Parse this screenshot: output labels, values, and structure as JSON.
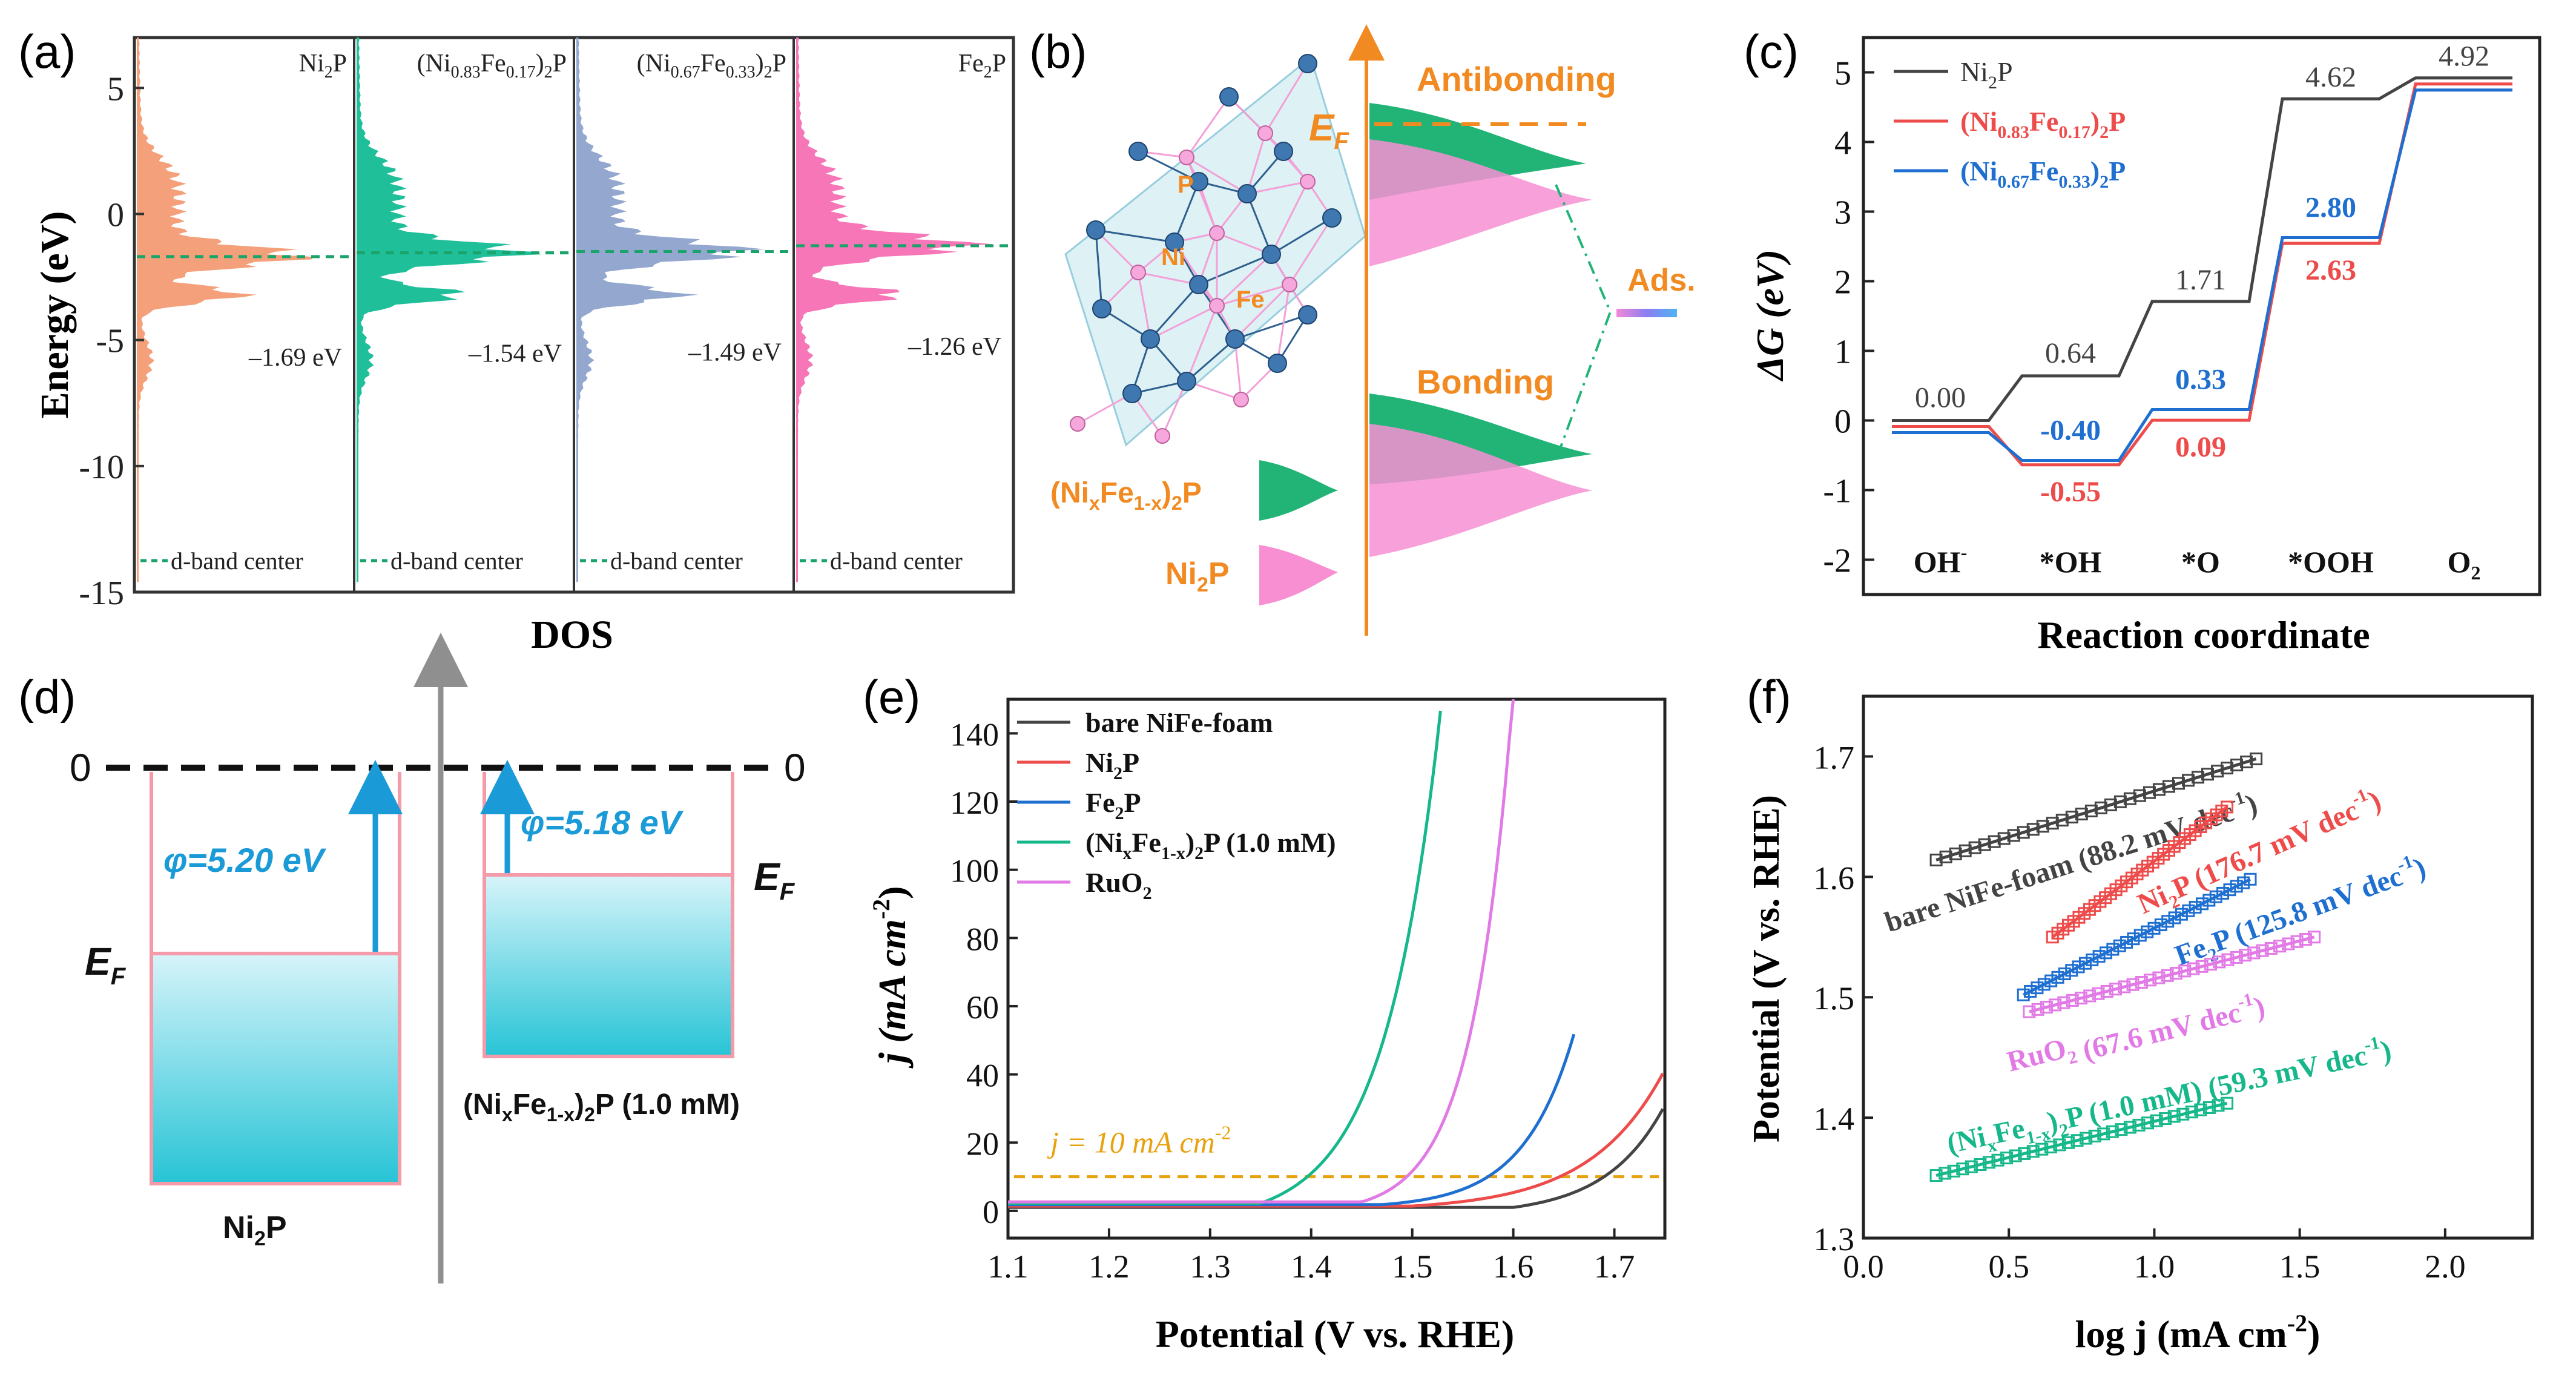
{
  "chart_data": [
    {
      "panel": "(a)",
      "type": "area",
      "ylabel": "Energy (eV)",
      "xlabel": "DOS",
      "ylim": [
        -15,
        7
      ],
      "yticks": [
        "5",
        "0",
        "-5",
        "-10",
        "-15"
      ],
      "subpanels": [
        {
          "name": "Ni",
          "name_sub": "2",
          "name_tail": "P",
          "color": "#f4a07a",
          "dband_center": -1.69,
          "dband_label": "–1.69 eV"
        },
        {
          "name": "(Ni",
          "name_sub": "0.83",
          "name_mid": "Fe",
          "name_sub2": "0.17",
          "name_tail": ")",
          "name_sub3": "2",
          "name_tail2": "P",
          "color": "#1fbf9a",
          "dband_center": -1.54,
          "dband_label": "–1.54 eV"
        },
        {
          "name": "(Ni",
          "name_sub": "0.67",
          "name_mid": "Fe",
          "name_sub2": "0.33",
          "name_tail": ")",
          "name_sub3": "2",
          "name_tail2": "P",
          "color": "#93a7cf",
          "dband_center": -1.49,
          "dband_label": "–1.49 eV"
        },
        {
          "name": "Fe",
          "name_sub": "2",
          "name_tail": "P",
          "color": "#f776b7",
          "dband_center": -1.26,
          "dband_label": "–1.26 eV"
        }
      ],
      "legend_label": "d-band center"
    },
    {
      "panel": "(b)",
      "type": "diagram",
      "labels": {
        "antibonding": "Antibonding",
        "bonding": "Bonding",
        "ef": "E",
        "ef_sub": "F",
        "ads": "Ads.",
        "atom_p": "P",
        "atom_ni": "Ni",
        "atom_fe": "Fe",
        "material1": "(Ni",
        "material1_sub": "x",
        "material1_mid": "Fe",
        "material1_sub2": "1-x",
        "material1_tail": ")",
        "material1_sub3": "2",
        "material1_tail2": "P",
        "material2": "Ni",
        "material2_sub": "2",
        "material2_tail": "P"
      },
      "colors": {
        "green": "#22b477",
        "pink": "#f78fd2",
        "orange": "#f28a22"
      }
    },
    {
      "panel": "(c)",
      "type": "line",
      "xlabel": "Reaction coordinate",
      "ylabel": "ΔG (eV)",
      "ylim": [
        -2.5,
        5.5
      ],
      "yticks": [
        5,
        4,
        3,
        2,
        1,
        0,
        -1,
        -2
      ],
      "categories": [
        "OH-",
        "*OH",
        "*O",
        "*OOH",
        "O2"
      ],
      "category_labels": [
        "OH",
        "*OH",
        "*O",
        "*OOH",
        "O"
      ],
      "category_sup": [
        "-",
        "",
        "",
        "",
        ""
      ],
      "category_sub": [
        "",
        "",
        "",
        "",
        "2"
      ],
      "series": [
        {
          "name": "Ni",
          "name_sub": "2",
          "name_tail": "P",
          "color": "#444444",
          "values": [
            0.0,
            0.64,
            1.71,
            4.62,
            4.92
          ],
          "labels": [
            "0.00",
            "0.64",
            "1.71",
            "4.62",
            "4.92"
          ]
        },
        {
          "name": "(Ni",
          "name_sub": "0.83",
          "name_mid": "Fe",
          "name_sub2": "0.17",
          "name_tail": ")",
          "name_sub3": "2",
          "name_tail2": "P",
          "color": "#ee4b4b",
          "values": [
            0.0,
            -0.55,
            0.09,
            2.63,
            4.92
          ],
          "labels": [
            "",
            "-0.55",
            "0.09",
            "2.63",
            ""
          ]
        },
        {
          "name": "(Ni",
          "name_sub": "0.67",
          "name_mid": "Fe",
          "name_sub2": "0.33",
          "name_tail": ")",
          "name_sub3": "2",
          "name_tail2": "P",
          "color": "#1f6fd1",
          "values": [
            0.0,
            -0.4,
            0.33,
            2.8,
            4.92
          ],
          "labels": [
            "",
            "-0.40",
            "0.33",
            "2.80",
            ""
          ]
        }
      ]
    },
    {
      "panel": "(d)",
      "type": "diagram",
      "labels": {
        "zero_left": "0",
        "zero_right": "0",
        "phi1": "φ=5.20 eV",
        "phi2": "φ=5.18 eV",
        "ef": "E",
        "ef_sub": "F",
        "mat1": "Ni",
        "mat1_sub": "2",
        "mat1_tail": "P",
        "mat2": "(Ni",
        "mat2_sub": "x",
        "mat2_mid": "Fe",
        "mat2_sub2": "1-x",
        "mat2_tail": ")",
        "mat2_sub3": "2",
        "mat2_tail2": "P (1.0 mM)"
      },
      "values": {
        "phi1": 5.2,
        "phi2": 5.18
      }
    },
    {
      "panel": "(e)",
      "type": "line",
      "xlabel": "Potential (V vs. RHE)",
      "ylabel": "j (mA cm",
      "ylabel_sup": "-2",
      "ylabel_tail": ")",
      "xlim": [
        1.1,
        1.75
      ],
      "ylim": [
        -8,
        150
      ],
      "xticks": [
        1.1,
        1.2,
        1.3,
        1.4,
        1.5,
        1.6,
        1.7
      ],
      "yticks": [
        0,
        20,
        40,
        60,
        80,
        100,
        120,
        140
      ],
      "reference_label": "j = 10 mA cm",
      "reference_sup": "-2",
      "reference_value": 10,
      "series": [
        {
          "name": "bare NiFe-foam",
          "color": "#444444",
          "onset": 1.6,
          "end_x": 1.75,
          "end_y": 30,
          "k": 0.0575
        },
        {
          "name": "Ni",
          "name_sub": "2",
          "name_tail": "P",
          "color": "#ee4b4b",
          "onset": 1.5,
          "end_x": 1.75,
          "end_y": 40,
          "k": 0.073
        },
        {
          "name": "Fe",
          "name_sub": "2",
          "name_tail": "P",
          "color": "#1f6fd1",
          "onset": 1.47,
          "end_x": 1.66,
          "end_y": 50,
          "k": 0.05
        },
        {
          "name": "(Ni",
          "name_sub": "x",
          "name_mid": "Fe",
          "name_sub2": "1-x",
          "name_tail": ")",
          "name_sub3": "2",
          "name_tail2": "P (1.0 mM)",
          "color": "#16b78a",
          "onset": 1.35,
          "end_x": 1.53,
          "end_y": 150,
          "k": 0.055
        },
        {
          "name": "RuO",
          "name_sub": "2",
          "name_tail": "",
          "color": "#e27ae6",
          "onset": 1.45,
          "end_x": 1.6,
          "end_y": 150,
          "k": 0.04
        }
      ]
    },
    {
      "panel": "(f)",
      "type": "scatter",
      "xlabel": "log j (mA cm",
      "xlabel_sup": "-2",
      "xlabel_tail": ")",
      "ylabel": "Potential (V vs. RHE)",
      "xlim": [
        0.0,
        2.3
      ],
      "ylim": [
        1.3,
        1.75
      ],
      "xticks": [
        0.0,
        0.5,
        1.0,
        1.5,
        2.0
      ],
      "yticks": [
        1.3,
        1.4,
        1.5,
        1.6,
        1.7
      ],
      "series": [
        {
          "name": "bare NiFe-foam",
          "tafel": "(88.2 mV dec",
          "tafel_sup": "-1",
          "tafel_tail": ")",
          "color": "#444444",
          "x": [
            0.25,
            1.35
          ],
          "y": [
            1.614,
            1.698
          ]
        },
        {
          "name": "Ni",
          "name_sub": "2",
          "name_tail": "P",
          "tafel": "(176.7 mV dec",
          "tafel_sup": "-1",
          "tafel_tail": ")",
          "color": "#ee4b4b",
          "x": [
            0.65,
            1.25
          ],
          "y": [
            1.55,
            1.658
          ]
        },
        {
          "name": "Fe",
          "name_sub": "2",
          "name_tail": "P",
          "tafel": "(125.8 mV dec",
          "tafel_sup": "-1",
          "tafel_tail": ")",
          "color": "#1f6fd1",
          "x": [
            0.55,
            1.33
          ],
          "y": [
            1.502,
            1.598
          ]
        },
        {
          "name": "RuO",
          "name_sub": "2",
          "name_tail": "",
          "tafel": "(67.6 mV dec",
          "tafel_sup": "-1",
          "tafel_tail": ")",
          "color": "#e27ae6",
          "x": [
            0.57,
            1.55
          ],
          "y": [
            1.488,
            1.55
          ]
        },
        {
          "name": "(Ni",
          "name_sub": "x",
          "name_mid": "Fe",
          "name_sub2": "1-x",
          "name_tail": ")",
          "name_sub3": "2",
          "name_tail2": "P (1.0 mM)",
          "tafel": "(59.3 mV dec",
          "tafel_sup": "-1",
          "tafel_tail": ")",
          "color": "#16b78a",
          "x": [
            0.25,
            1.25
          ],
          "y": [
            1.352,
            1.412
          ]
        }
      ]
    }
  ]
}
